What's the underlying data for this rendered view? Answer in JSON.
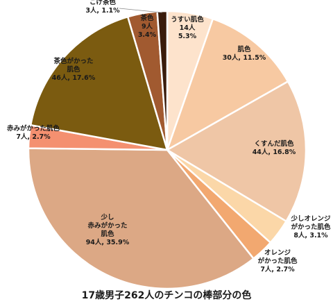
{
  "chart_data": {
    "type": "pie",
    "title": "17歳男子262人のチンコの棒部分の色",
    "slices": [
      {
        "label_lines": [
          "うすい肌色",
          "14人",
          "5.3%"
        ],
        "value": 14,
        "percent": 5.3,
        "color": "#fde3cc"
      },
      {
        "label_lines": [
          "肌色",
          "30人, 11.5%"
        ],
        "value": 30,
        "percent": 11.5,
        "color": "#f7c9a2"
      },
      {
        "label_lines": [
          "くすんだ肌色",
          "44人, 16.8%"
        ],
        "value": 44,
        "percent": 16.8,
        "color": "#efc6a6"
      },
      {
        "label_lines": [
          "少しオレンジ",
          "がかった肌色",
          "8人, 3.1%"
        ],
        "value": 8,
        "percent": 3.1,
        "color": "#fbd7a8"
      },
      {
        "label_lines": [
          "オレンジ",
          "がかった肌色",
          "7人, 2.7%"
        ],
        "value": 7,
        "percent": 2.7,
        "color": "#f2a870"
      },
      {
        "label_lines": [
          "少し",
          "赤みがかった",
          "肌色",
          "94人, 35.9%"
        ],
        "value": 94,
        "percent": 35.9,
        "color": "#dca885"
      },
      {
        "label_lines": [
          "赤みがかった肌色",
          "7人, 2.7%"
        ],
        "value": 7,
        "percent": 2.7,
        "color": "#f49070"
      },
      {
        "label_lines": [
          "茶色がかった",
          "肌色",
          "46人, 17.6%"
        ],
        "value": 46,
        "percent": 17.6,
        "color": "#7b5b10"
      },
      {
        "label_lines": [
          "茶色",
          "9人",
          "3.4%"
        ],
        "value": 9,
        "percent": 3.4,
        "color": "#a15a30"
      },
      {
        "label_lines": [
          "こげ茶色",
          "3人, 1.1%"
        ],
        "value": 3,
        "percent": 1.1,
        "color": "#3a1c0c"
      }
    ],
    "legend": "none"
  }
}
